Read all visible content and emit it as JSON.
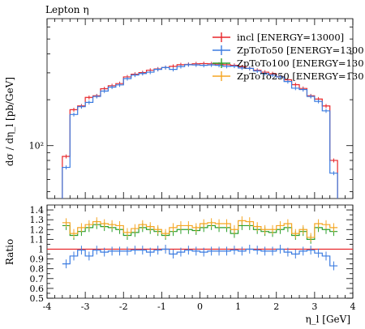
{
  "chart_data": [
    {
      "type": "line",
      "title": "Lepton η",
      "ylabel": "dσ / dη_l [pb/GeV]",
      "xlabel": "",
      "yscale": "log",
      "xlim": [
        -4,
        4
      ],
      "ylim": [
        45,
        680
      ],
      "ytick_labels": [
        "10²"
      ],
      "ytick_values": [
        100
      ],
      "legend_position": "top-right",
      "bin_edges": [
        -3.6,
        -3.4,
        -3.2,
        -3.0,
        -2.8,
        -2.6,
        -2.4,
        -2.2,
        -2.0,
        -1.8,
        -1.6,
        -1.4,
        -1.2,
        -1.0,
        -0.8,
        -0.6,
        -0.4,
        -0.2,
        0.0,
        0.2,
        0.4,
        0.6,
        0.8,
        1.0,
        1.2,
        1.4,
        1.6,
        1.8,
        2.0,
        2.2,
        2.4,
        2.6,
        2.8,
        3.0,
        3.2,
        3.4,
        3.6
      ],
      "series": [
        {
          "name": "incl [ENERGY=13000]",
          "color": "#e8262a",
          "values": [
            85,
            172,
            182,
            207,
            212,
            236,
            247,
            255,
            282,
            294,
            301,
            312,
            318,
            325,
            331,
            339,
            341,
            344,
            345,
            344,
            342,
            339,
            336,
            329,
            321,
            312,
            303,
            296,
            283,
            270,
            251,
            237,
            212,
            202,
            182,
            80
          ]
        },
        {
          "name": "ZpToTo50 [ENERGY=1300",
          "color": "#3b7be0",
          "values": [
            72,
            160,
            180,
            192,
            210,
            228,
            242,
            250,
            275,
            290,
            297,
            303,
            316,
            325,
            316,
            330,
            339,
            338,
            336,
            338,
            336,
            331,
            332,
            323,
            321,
            309,
            297,
            290,
            282,
            263,
            238,
            233,
            210,
            195,
            169,
            66
          ]
        }
      ]
    },
    {
      "type": "line",
      "ylabel": "Ratio",
      "xlabel": "η_l [GeV]",
      "xlim": [
        -4,
        4
      ],
      "ylim": [
        0.5,
        1.45
      ],
      "ytick_labels": [
        "0.5",
        "0.6",
        "0.7",
        "0.8",
        "0.9",
        "1",
        "1.1",
        "1.2",
        "1.3",
        "1.4"
      ],
      "ytick_values": [
        0.5,
        0.6,
        0.7,
        0.8,
        0.9,
        1.0,
        1.1,
        1.2,
        1.3,
        1.4
      ],
      "xtick_labels": [
        "-4",
        "-3",
        "-2",
        "-1",
        "0",
        "1",
        "2",
        "3",
        "4"
      ],
      "xtick_values": [
        -4,
        -3,
        -2,
        -1,
        0,
        1,
        2,
        3,
        4
      ],
      "reference_line": 1,
      "bin_edges": [
        -3.6,
        -3.4,
        -3.2,
        -3.0,
        -2.8,
        -2.6,
        -2.4,
        -2.2,
        -2.0,
        -1.8,
        -1.6,
        -1.4,
        -1.2,
        -1.0,
        -0.8,
        -0.6,
        -0.4,
        -0.2,
        0.0,
        0.2,
        0.4,
        0.6,
        0.8,
        1.0,
        1.2,
        1.4,
        1.6,
        1.8,
        2.0,
        2.2,
        2.4,
        2.6,
        2.8,
        3.0,
        3.2,
        3.4,
        3.6
      ],
      "series": [
        {
          "name": "incl [ENERGY=13000]",
          "color": "#e8262a",
          "values": [
            1,
            1,
            1,
            1,
            1,
            1,
            1,
            1,
            1,
            1,
            1,
            1,
            1,
            1,
            1,
            1,
            1,
            1,
            1,
            1,
            1,
            1,
            1,
            1,
            1,
            1,
            1,
            1,
            1,
            1,
            1,
            1,
            1,
            1,
            1,
            1
          ]
        },
        {
          "name": "ZpToTo50 [ENERGY=1300",
          "color": "#3b7be0",
          "values": [
            0.85,
            0.93,
            0.99,
            0.93,
            0.99,
            0.97,
            0.98,
            0.98,
            0.98,
            0.99,
            0.99,
            0.97,
            0.99,
            1.0,
            0.95,
            0.97,
            0.99,
            0.98,
            0.97,
            0.98,
            0.98,
            0.98,
            0.99,
            0.98,
            1.0,
            0.99,
            0.98,
            0.98,
            1.0,
            0.97,
            0.95,
            0.98,
            0.99,
            0.96,
            0.93,
            0.83
          ]
        },
        {
          "name": "ZpToTo100 [ENERGY=130",
          "color": "#2ca02c",
          "values": [
            1.24,
            1.14,
            1.18,
            1.22,
            1.25,
            1.23,
            1.22,
            1.2,
            1.14,
            1.17,
            1.22,
            1.2,
            1.18,
            1.14,
            1.18,
            1.2,
            1.2,
            1.19,
            1.22,
            1.24,
            1.22,
            1.22,
            1.16,
            1.24,
            1.24,
            1.2,
            1.18,
            1.17,
            1.2,
            1.22,
            1.14,
            1.18,
            1.1,
            1.22,
            1.2,
            1.18
          ]
        },
        {
          "name": "ZpToTo250 [ENERGY=130",
          "color": "#f5a623",
          "values": [
            1.27,
            1.16,
            1.22,
            1.25,
            1.28,
            1.26,
            1.25,
            1.24,
            1.17,
            1.21,
            1.25,
            1.23,
            1.2,
            1.16,
            1.22,
            1.24,
            1.24,
            1.22,
            1.26,
            1.27,
            1.26,
            1.26,
            1.2,
            1.29,
            1.28,
            1.23,
            1.2,
            1.2,
            1.24,
            1.26,
            1.16,
            1.2,
            1.12,
            1.26,
            1.25,
            1.22
          ]
        }
      ]
    }
  ]
}
